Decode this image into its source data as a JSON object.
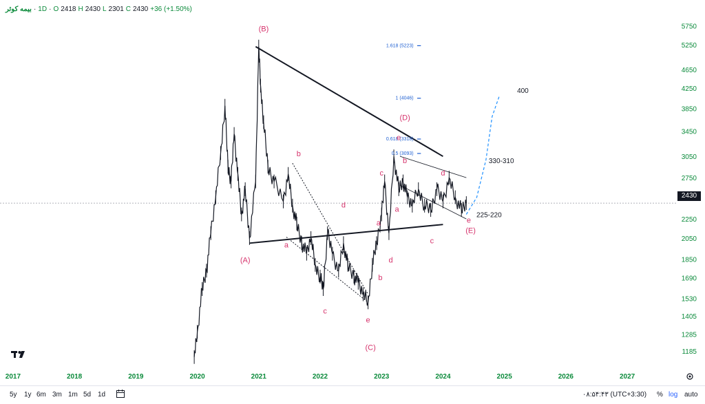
{
  "header": {
    "symbol": "بیمه کوثر",
    "timeframe": "1D",
    "o_label": "O",
    "open": "2418",
    "h_label": "H",
    "high": "2430",
    "l_label": "L",
    "low": "2301",
    "c_label": "C",
    "close": "2430",
    "change": "+36 (+1.50%)"
  },
  "price_axis": {
    "scale": "log",
    "ticks": [
      "5750",
      "5250",
      "4650",
      "4250",
      "3850",
      "3450",
      "3050",
      "2750",
      "2250",
      "2050",
      "1850",
      "1690",
      "1530",
      "1405",
      "1285",
      "1185"
    ],
    "current_price_label": "2430"
  },
  "time_axis": {
    "ticks": [
      "2017",
      "2018",
      "2019",
      "2020",
      "2021",
      "2022",
      "2023",
      "2024",
      "2025",
      "2026",
      "2027"
    ]
  },
  "chart_data": {
    "type": "line",
    "title": "",
    "xlabel": "",
    "ylabel": "",
    "ylim": [
      1100,
      6100
    ],
    "log_scale": true,
    "series": [
      {
        "values_x": [
          2019.95,
          2020.0,
          2020.08,
          2020.15,
          2020.22,
          2020.3,
          2020.38,
          2020.45,
          2020.5,
          2020.55,
          2020.6,
          2020.66,
          2020.72,
          2020.78,
          2020.85,
          2020.95,
          2021.0,
          2021.03,
          2021.08,
          2021.15,
          2021.25,
          2021.4,
          2021.48,
          2021.55,
          2021.62,
          2021.7,
          2021.78,
          2021.85,
          2021.92,
          2022.0,
          2022.05,
          2022.12,
          2022.2,
          2022.3,
          2022.38,
          2022.45,
          2022.55,
          2022.62,
          2022.7,
          2022.78,
          2022.85,
          2022.92,
          2023.0,
          2023.05,
          2023.12,
          2023.2,
          2023.28,
          2023.35,
          2023.42,
          2023.5,
          2023.6,
          2023.7,
          2023.8,
          2023.9,
          2024.0,
          2024.1,
          2024.2,
          2024.3,
          2024.38
        ],
        "values": [
          1150,
          1300,
          1600,
          1750,
          2100,
          2500,
          3100,
          3900,
          2900,
          2700,
          3400,
          2800,
          2300,
          2600,
          2050,
          2700,
          5200,
          4300,
          3600,
          2900,
          2700,
          2450,
          2800,
          2400,
          2200,
          2000,
          1900,
          2050,
          1800,
          1700,
          1600,
          2100,
          1900,
          1750,
          2000,
          1800,
          1700,
          1650,
          1560,
          1500,
          1800,
          2000,
          2300,
          2700,
          2100,
          3050,
          2600,
          2700,
          2500,
          2400,
          2600,
          2400,
          2350,
          2600,
          2450,
          2750,
          2500,
          2350,
          2430
        ]
      }
    ],
    "annotations": {
      "major_waves": [
        "(A)",
        "(B)",
        "(C)",
        "(D)",
        "(E)"
      ],
      "minor_waves": [
        "a",
        "b",
        "c",
        "d",
        "e"
      ],
      "fibonacci": [
        "1.618 (5223)",
        "1 (4046)",
        "0.618 (3318)",
        "0.5 (3093)"
      ],
      "fib_values": [
        5223,
        4046,
        3318,
        3093
      ],
      "targets": [
        "400",
        "330-310",
        "225-220"
      ]
    }
  },
  "footer": {
    "timeframes": [
      "5y",
      "1y",
      "6m",
      "3m",
      "1m",
      "5d",
      "1d"
    ],
    "clock": "۰۸:۵۴:۴۳ (UTC+3:30)",
    "percent": "%",
    "log": "log",
    "auto": "auto"
  },
  "colors": {
    "axis_text": "#0a8a3a",
    "wave_label": "#d6336c",
    "fib": "#1e5fd1",
    "projection": "#1e90ff"
  }
}
